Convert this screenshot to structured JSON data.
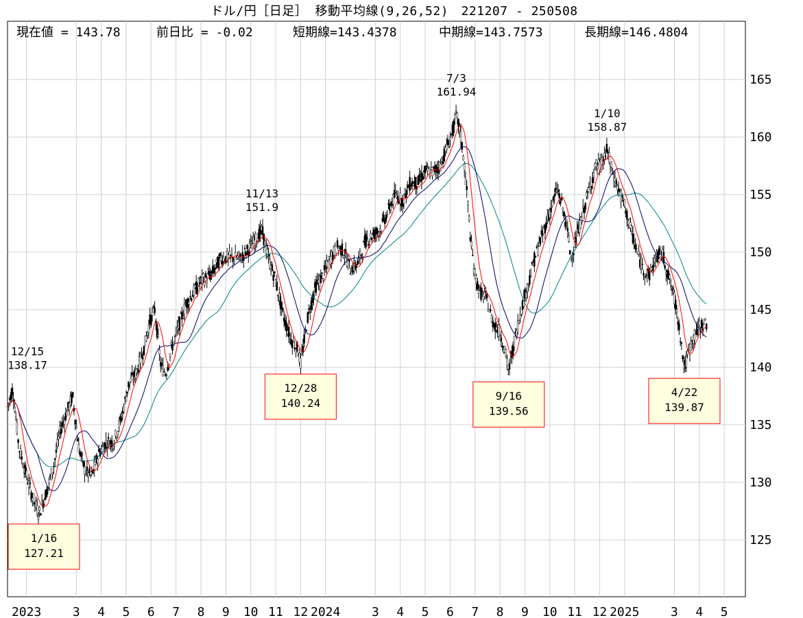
{
  "chart_data": {
    "type": "candlestick",
    "title": "ドル/円［日足］ 移動平均線(9,26,52)　221207 - 250508",
    "header_stats": [
      "現在値 = 143.78",
      "前日比 = -0.02",
      "短期線=143.4378",
      "中期線=143.7573",
      "長期線=146.4804"
    ],
    "ylim": [
      120,
      170
    ],
    "yticks": [
      125,
      130,
      135,
      140,
      145,
      150,
      155,
      160,
      165
    ],
    "x_labels": [
      "2023",
      "3",
      "4",
      "5",
      "6",
      "7",
      "8",
      "9",
      "10",
      "11",
      "12",
      "2024",
      "3",
      "4",
      "5",
      "6",
      "7",
      "8",
      "9",
      "10",
      "11",
      "12",
      "2025",
      "3",
      "4",
      "5"
    ],
    "x_label_months": [
      1,
      3,
      4,
      5,
      6,
      7,
      8,
      9,
      10,
      11,
      12,
      13,
      15,
      16,
      17,
      18,
      19,
      20,
      21,
      22,
      23,
      24,
      25,
      27,
      28,
      29
    ],
    "x_range_months": [
      0.24,
      29.85
    ],
    "grid": true,
    "series_colors": {
      "candles": "#ff0000",
      "short_ma": "#ff0000",
      "mid_ma": "#000066",
      "long_ma": "#008080"
    },
    "price_path": [
      [
        0.24,
        136.5
      ],
      [
        0.45,
        138.17
      ],
      [
        0.7,
        133
      ],
      [
        0.95,
        131
      ],
      [
        1.2,
        129
      ],
      [
        1.5,
        127.21
      ],
      [
        1.85,
        129.5
      ],
      [
        2.1,
        131.5
      ],
      [
        2.35,
        134.5
      ],
      [
        2.6,
        136
      ],
      [
        2.85,
        137.5
      ],
      [
        3.1,
        133
      ],
      [
        3.35,
        131
      ],
      [
        3.6,
        130.5
      ],
      [
        3.9,
        132.5
      ],
      [
        4.2,
        133.5
      ],
      [
        4.5,
        133.5
      ],
      [
        4.8,
        135.5
      ],
      [
        5.1,
        138.5
      ],
      [
        5.4,
        139.5
      ],
      [
        5.7,
        141.5
      ],
      [
        5.95,
        144
      ],
      [
        6.15,
        145
      ],
      [
        6.4,
        140
      ],
      [
        6.6,
        139.5
      ],
      [
        6.8,
        141.5
      ],
      [
        7.1,
        143.5
      ],
      [
        7.4,
        145.5
      ],
      [
        7.7,
        146.5
      ],
      [
        8,
        147.5
      ],
      [
        8.4,
        148
      ],
      [
        8.8,
        149.5
      ],
      [
        9.2,
        149.5
      ],
      [
        9.6,
        149.5
      ],
      [
        10.0,
        150.5
      ],
      [
        10.45,
        151.9
      ],
      [
        10.7,
        149.5
      ],
      [
        11.0,
        147.5
      ],
      [
        11.3,
        144.5
      ],
      [
        11.6,
        142.5
      ],
      [
        11.9,
        141.5
      ],
      [
        12.0,
        140.24
      ],
      [
        12.3,
        144.5
      ],
      [
        12.6,
        147
      ],
      [
        12.9,
        148
      ],
      [
        13.2,
        149.5
      ],
      [
        13.5,
        150.5
      ],
      [
        13.75,
        150
      ],
      [
        14.0,
        148.5
      ],
      [
        14.3,
        149
      ],
      [
        14.6,
        151
      ],
      [
        14.9,
        151.5
      ],
      [
        15.2,
        152
      ],
      [
        15.5,
        153.5
      ],
      [
        15.8,
        155
      ],
      [
        16.1,
        154.5
      ],
      [
        16.4,
        156
      ],
      [
        16.7,
        156
      ],
      [
        17.0,
        157
      ],
      [
        17.3,
        157
      ],
      [
        17.6,
        157.5
      ],
      [
        17.85,
        159
      ],
      [
        18.1,
        160.5
      ],
      [
        18.25,
        161.94
      ],
      [
        18.4,
        160.5
      ],
      [
        18.55,
        158
      ],
      [
        18.7,
        154.5
      ],
      [
        18.85,
        150.5
      ],
      [
        19.0,
        148
      ],
      [
        19.2,
        146.5
      ],
      [
        19.45,
        146
      ],
      [
        19.7,
        144
      ],
      [
        20.0,
        143
      ],
      [
        20.2,
        141.5
      ],
      [
        20.35,
        139.56
      ],
      [
        20.6,
        142.5
      ],
      [
        20.85,
        145
      ],
      [
        21.1,
        147
      ],
      [
        21.4,
        149.5
      ],
      [
        21.7,
        151.5
      ],
      [
        22.0,
        153.5
      ],
      [
        22.3,
        155.5
      ],
      [
        22.5,
        154
      ],
      [
        22.7,
        152
      ],
      [
        22.85,
        149.5
      ],
      [
        23.1,
        151.5
      ],
      [
        23.4,
        154
      ],
      [
        23.65,
        156
      ],
      [
        23.85,
        157.5
      ],
      [
        24.05,
        157.5
      ],
      [
        24.3,
        158.87
      ],
      [
        24.5,
        157
      ],
      [
        24.75,
        155.5
      ],
      [
        25.0,
        154
      ],
      [
        25.25,
        152
      ],
      [
        25.5,
        150
      ],
      [
        25.75,
        148.5
      ],
      [
        26.0,
        148
      ],
      [
        26.25,
        149.5
      ],
      [
        26.5,
        150
      ],
      [
        26.75,
        148
      ],
      [
        27.0,
        146
      ],
      [
        27.2,
        143.5
      ],
      [
        27.4,
        139.87
      ],
      [
        27.6,
        141.5
      ],
      [
        27.85,
        143
      ],
      [
        28.1,
        143.7
      ],
      [
        28.3,
        143.78
      ]
    ],
    "annotations": [
      {
        "date": "12/15",
        "value": "138.17",
        "label_row1": "12/15",
        "label_row2": "138.17",
        "x_month": 0.24,
        "y": 138.17,
        "boxed": false
      },
      {
        "date": "1/16",
        "value": "127.21",
        "label_row1": "1/16",
        "label_row2": "127.21",
        "x_month": 1.5,
        "y": 127.21,
        "boxed": true
      },
      {
        "date": "11/13",
        "value": "151.9",
        "label_row1": "11/13",
        "label_row2": "151.9",
        "x_month": 10.45,
        "y": 151.9,
        "boxed": false
      },
      {
        "date": "12/28",
        "value": "140.24",
        "label_row1": "12/28",
        "label_row2": "140.24",
        "x_month": 12.0,
        "y": 140.24,
        "boxed": true
      },
      {
        "date": "7/3",
        "value": "161.94",
        "label_row1": "7/3",
        "label_row2": "161.94",
        "x_month": 18.25,
        "y": 161.94,
        "boxed": false
      },
      {
        "date": "9/16",
        "value": "139.56",
        "label_row1": "9/16",
        "label_row2": "139.56",
        "x_month": 20.35,
        "y": 139.56,
        "boxed": true
      },
      {
        "date": "1/10",
        "value": "158.87",
        "label_row1": "1/10",
        "label_row2": "158.87",
        "x_month": 24.3,
        "y": 158.87,
        "boxed": false
      },
      {
        "date": "4/22",
        "value": "139.87",
        "label_row1": "4/22",
        "label_row2": "139.87",
        "x_month": 27.4,
        "y": 139.87,
        "boxed": true
      }
    ]
  }
}
